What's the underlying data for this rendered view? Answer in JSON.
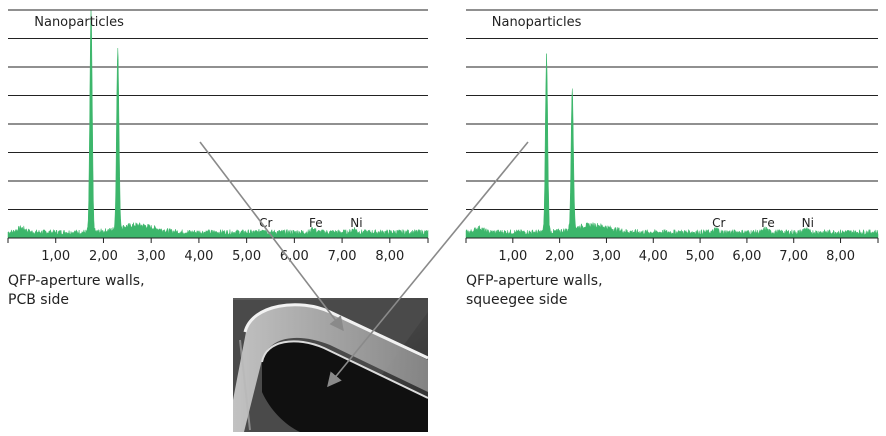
{
  "colors": {
    "spectrum": "#3cb66b",
    "gridline": "#222222",
    "axis": "#222222",
    "arrow": "#8a8a8a",
    "text": "#222222"
  },
  "chart_data": [
    {
      "type": "area",
      "title": "Nanoparticles",
      "xlim": [
        0,
        8.8
      ],
      "ylim": [
        0,
        8
      ],
      "grid": "horizontal",
      "xticks": [
        "1,00",
        "2,00",
        "3,00",
        "4,00",
        "5,00",
        "6,00",
        "7,00",
        "8,00"
      ],
      "xtick_values": [
        1,
        2,
        3,
        4,
        5,
        6,
        7,
        8
      ],
      "peaks": [
        {
          "x": 1.74,
          "y": 7.9
        },
        {
          "x": 2.3,
          "y": 6.4
        }
      ],
      "element_labels": [
        {
          "text": "Cr",
          "x": 5.4
        },
        {
          "text": "Fe",
          "x": 6.45
        },
        {
          "text": "Ni",
          "x": 7.3
        }
      ],
      "caption": [
        "QFP-aperture walls,",
        "PCB side"
      ]
    },
    {
      "type": "area",
      "title": "Nanoparticles",
      "xlim": [
        0,
        8.8
      ],
      "ylim": [
        0,
        8
      ],
      "grid": "horizontal",
      "xticks": [
        "1,00",
        "2,00",
        "3,00",
        "4,00",
        "5,00",
        "6,00",
        "7,00",
        "8,00"
      ],
      "xtick_values": [
        1,
        2,
        3,
        4,
        5,
        6,
        7,
        8
      ],
      "peaks": [
        {
          "x": 1.72,
          "y": 6.2
        },
        {
          "x": 2.27,
          "y": 5.0
        }
      ],
      "element_labels": [
        {
          "text": "Cr",
          "x": 5.4
        },
        {
          "text": "Fe",
          "x": 6.45
        },
        {
          "text": "Ni",
          "x": 7.3
        }
      ],
      "caption": [
        "QFP-aperture walls,",
        "squeegee side"
      ]
    }
  ]
}
